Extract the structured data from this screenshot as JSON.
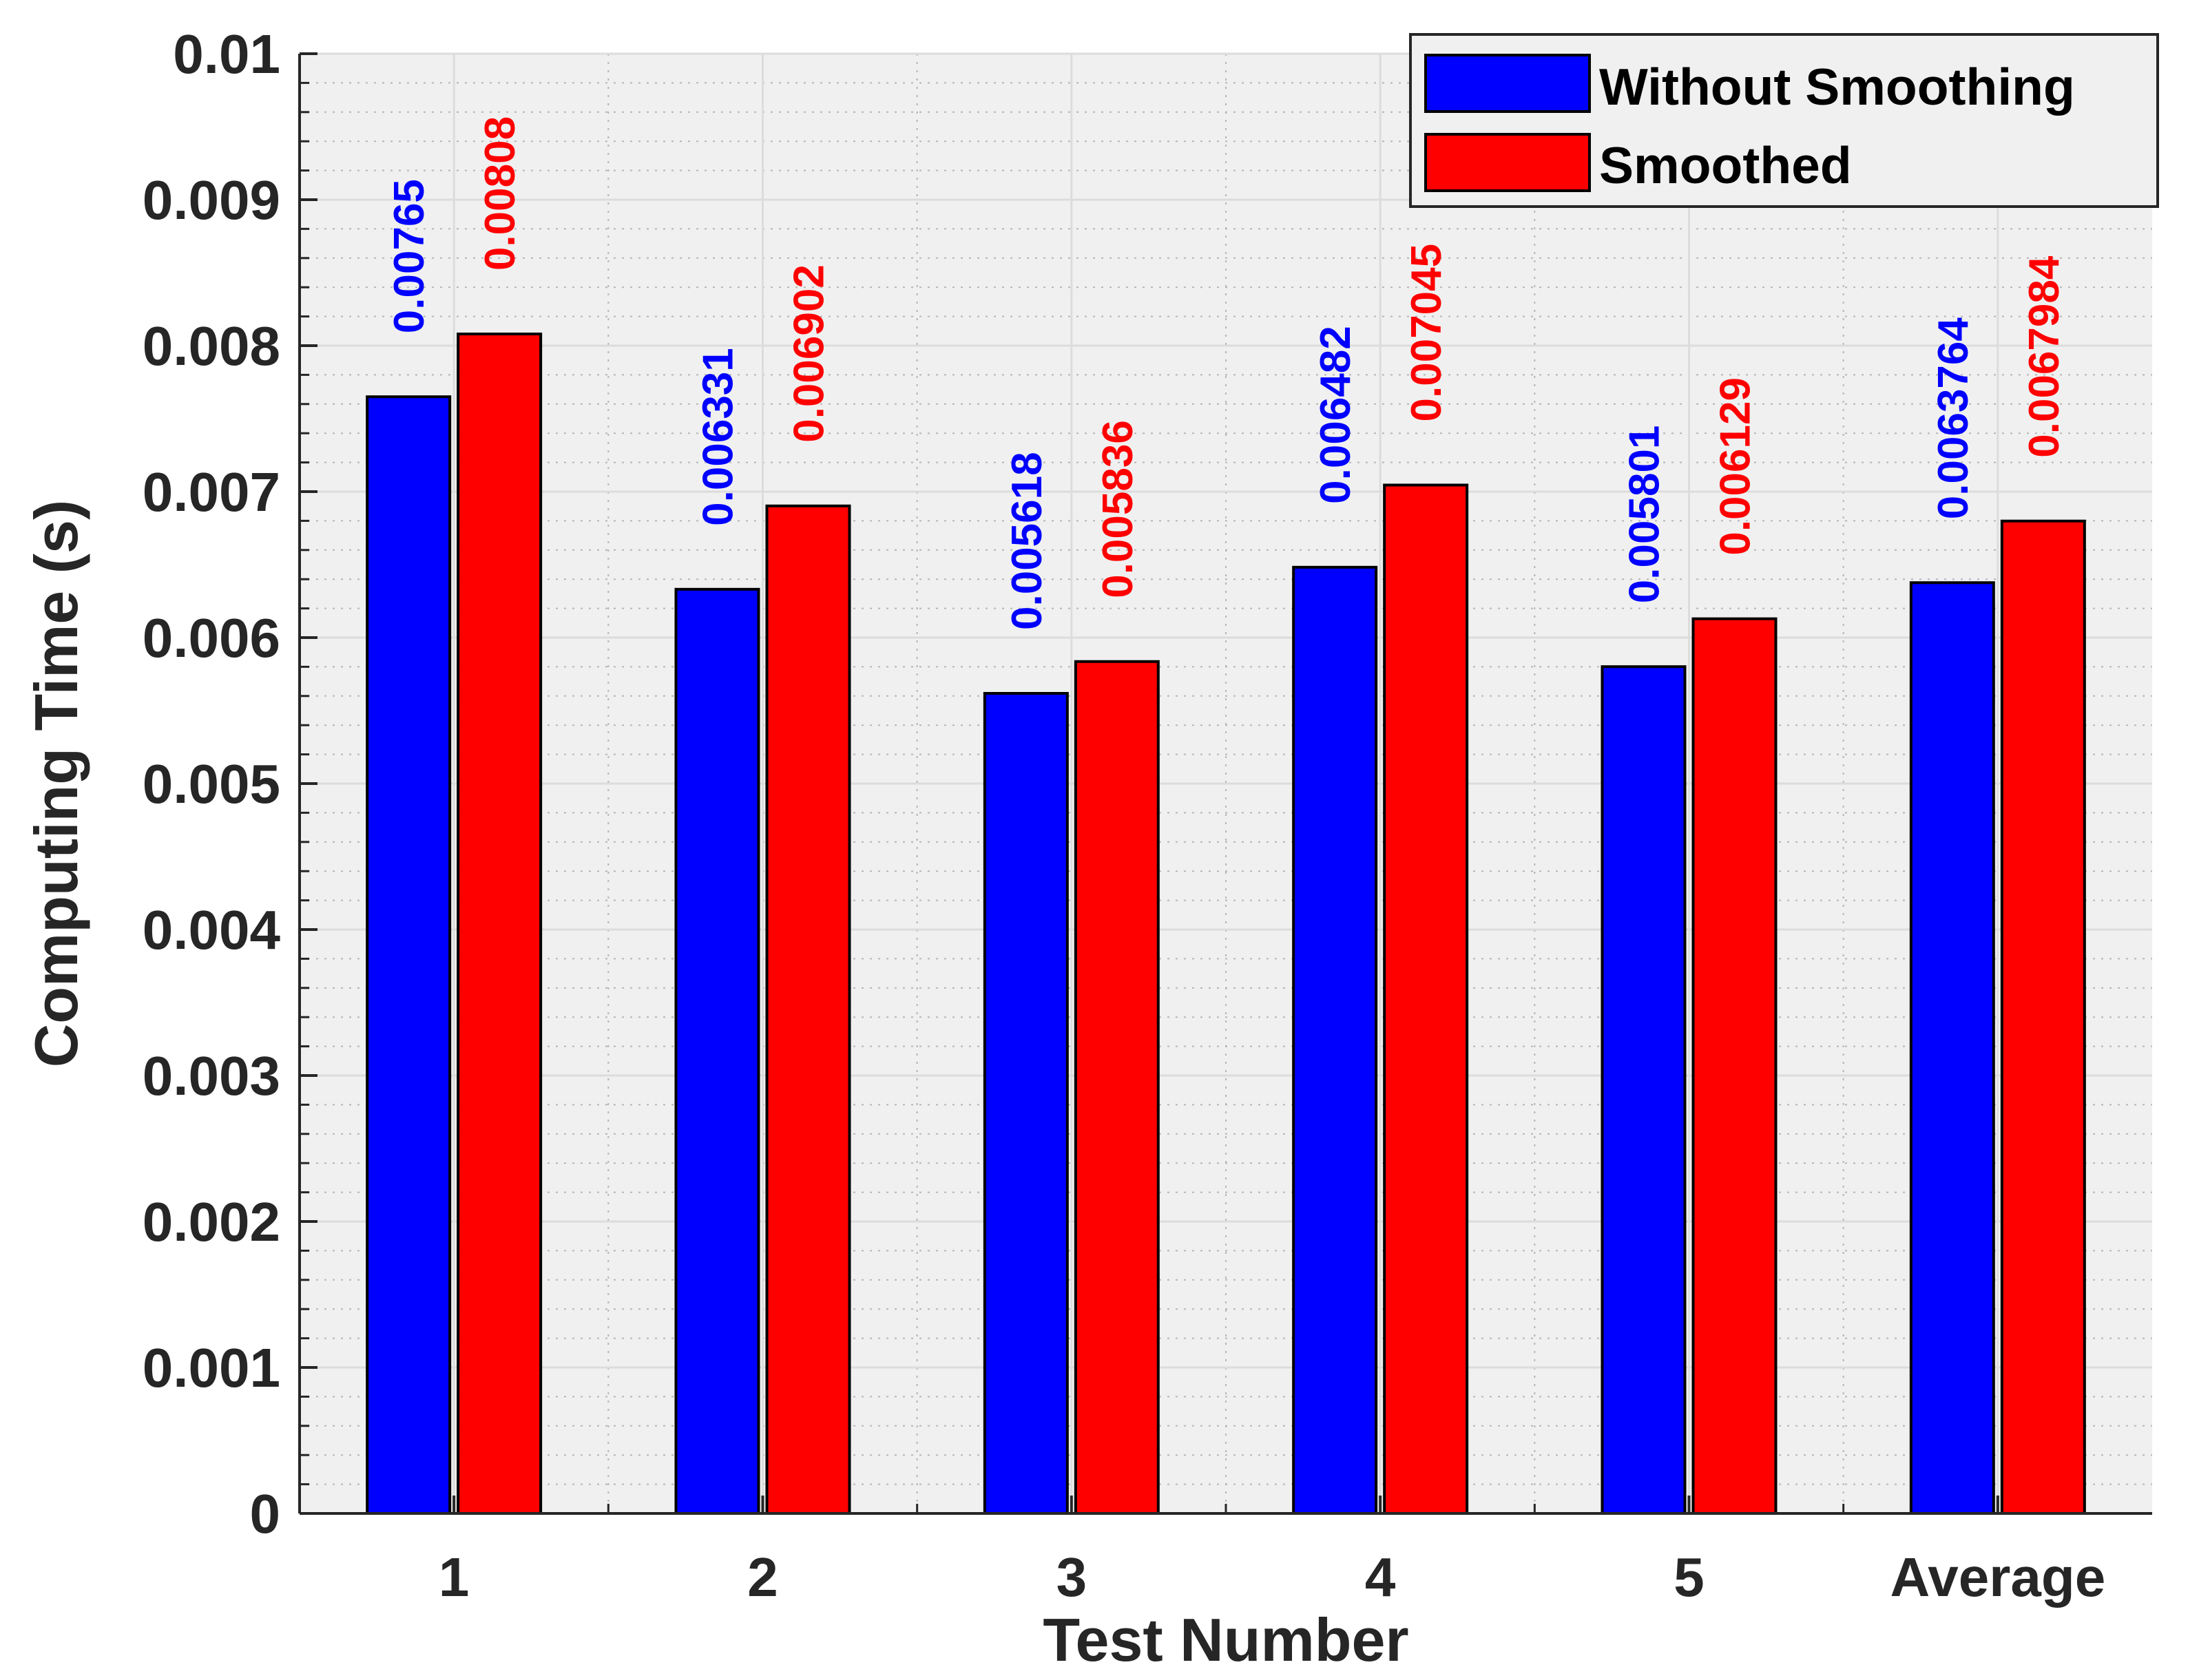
{
  "chart_data": {
    "type": "bar",
    "title": "",
    "xlabel": "Test Number",
    "ylabel": "Computing Time (s)",
    "categories": [
      "1",
      "2",
      "3",
      "4",
      "5",
      "Average"
    ],
    "ylim": [
      0,
      0.01
    ],
    "yticks": [
      "0",
      "0.001",
      "0.002",
      "0.003",
      "0.004",
      "0.005",
      "0.006",
      "0.007",
      "0.008",
      "0.009",
      "0.01"
    ],
    "grid": true,
    "legend_position": "top-right",
    "series": [
      {
        "name": "Without Smoothing",
        "color": "#0000ff",
        "values": [
          0.00765,
          0.006331,
          0.005618,
          0.006482,
          0.005801,
          0.0063764
        ],
        "labels": [
          "0.00765",
          "0.006331",
          "0.005618",
          "0.006482",
          "0.005801",
          "0.0063764"
        ]
      },
      {
        "name": "Smoothed",
        "color": "#ff0000",
        "values": [
          0.00808,
          0.006902,
          0.005836,
          0.007045,
          0.006129,
          0.0067984
        ],
        "labels": [
          "0.00808",
          "0.006902",
          "0.005836",
          "0.007045",
          "0.006129",
          "0.0067984"
        ]
      }
    ]
  }
}
